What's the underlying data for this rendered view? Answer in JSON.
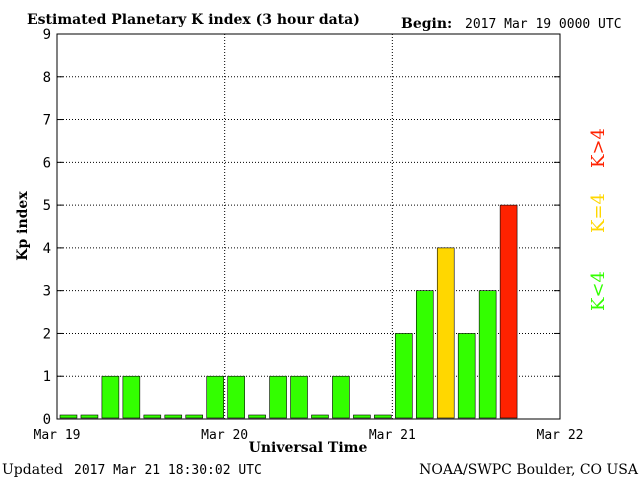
{
  "chart_data": {
    "type": "bar",
    "title": "Estimated Planetary K index (3 hour data)",
    "begin_label": "Begin:",
    "begin_value": "2017 Mar 19 0000 UTC",
    "xlabel": "Universal Time",
    "ylabel": "Kp index",
    "ylim": [
      0,
      9
    ],
    "yticks": [
      "0",
      "1",
      "2",
      "3",
      "4",
      "5",
      "6",
      "7",
      "8",
      "9"
    ],
    "xticks": [
      "Mar 19",
      "Mar 20",
      "Mar 21",
      "Mar 22"
    ],
    "xlim_days": [
      0,
      3
    ],
    "grid": true,
    "values": [
      0,
      0,
      1,
      1,
      0,
      0,
      0,
      1,
      1,
      0,
      1,
      1,
      0,
      1,
      0,
      0,
      2,
      3,
      4,
      2,
      3,
      5
    ],
    "colors": {
      "below_4": "#33ff00",
      "equal_4": "#ffd700",
      "above_4": "#ff2200"
    },
    "legend": [
      {
        "label": "K<4",
        "color": "#33ff00"
      },
      {
        "label": "K=4",
        "color": "#ffd700"
      },
      {
        "label": "K>4",
        "color": "#ff2200"
      }
    ]
  },
  "footer": {
    "updated_label": "Updated",
    "updated_value": "2017 Mar 21 18:30:02 UTC",
    "source": "NOAA/SWPC Boulder, CO USA"
  }
}
